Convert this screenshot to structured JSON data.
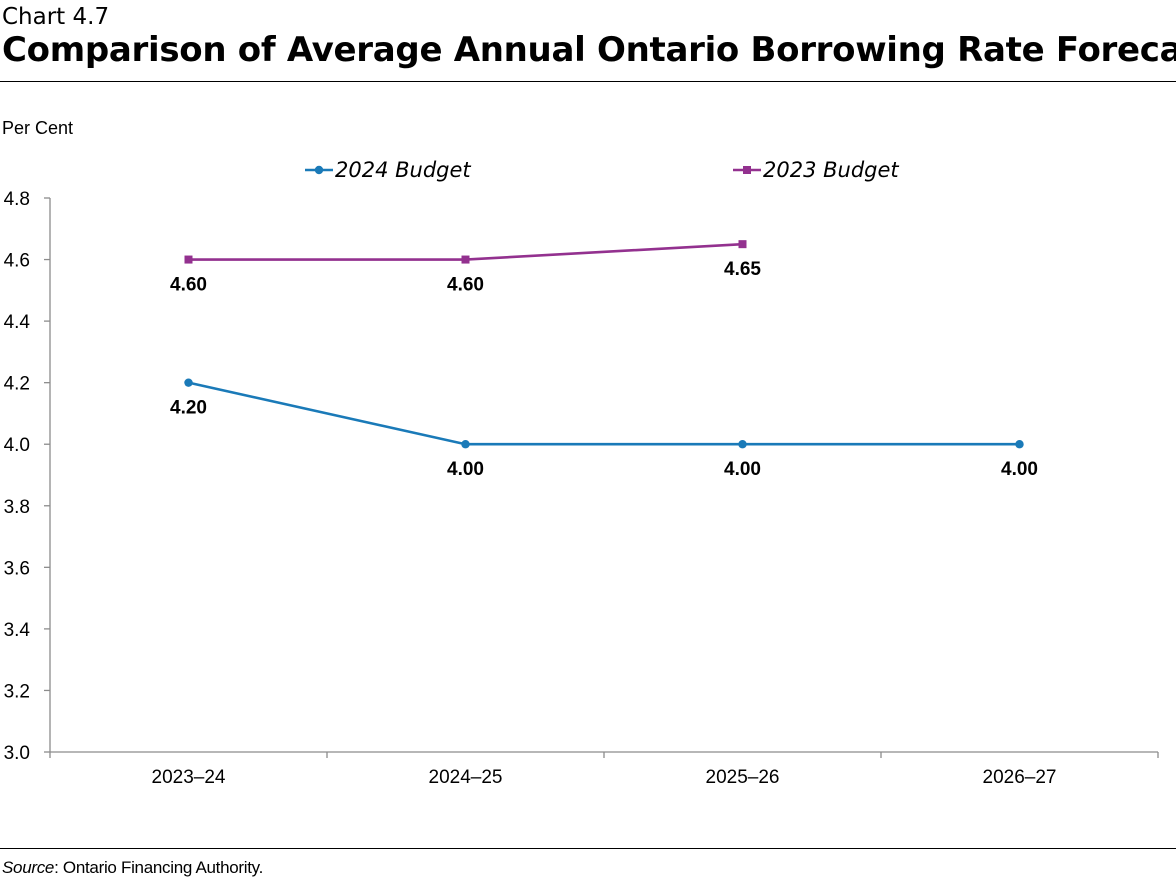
{
  "header": {
    "kicker": "Chart 4.7",
    "title": "Comparison of Average Annual Ontario Borrowing Rate Forecast"
  },
  "footer": {
    "source_label": "Source",
    "source_text": ": Ontario Financing Authority."
  },
  "chart_data": {
    "type": "line",
    "title": "Comparison of Average Annual Ontario Borrowing Rate Forecast",
    "ylabel": "Per Cent",
    "xlabel": "",
    "ylim": [
      3.0,
      4.8
    ],
    "yticks": [
      "3.0",
      "3.2",
      "3.4",
      "3.6",
      "3.8",
      "4.0",
      "4.2",
      "4.4",
      "4.6",
      "4.8"
    ],
    "categories": [
      "2023–24",
      "2024–25",
      "2025–26",
      "2026–27"
    ],
    "grid": false,
    "legend_position": "top",
    "series": [
      {
        "name": "2024 Budget",
        "color": "#1a7ab8",
        "marker": "circle",
        "values": [
          4.2,
          4.0,
          4.0,
          4.0
        ],
        "labels": [
          "4.20",
          "4.00",
          "4.00",
          "4.00"
        ]
      },
      {
        "name": "2023 Budget",
        "color": "#93318f",
        "marker": "square",
        "values": [
          4.6,
          4.6,
          4.65,
          null
        ],
        "labels": [
          "4.60",
          "4.60",
          "4.65",
          null
        ]
      }
    ]
  }
}
